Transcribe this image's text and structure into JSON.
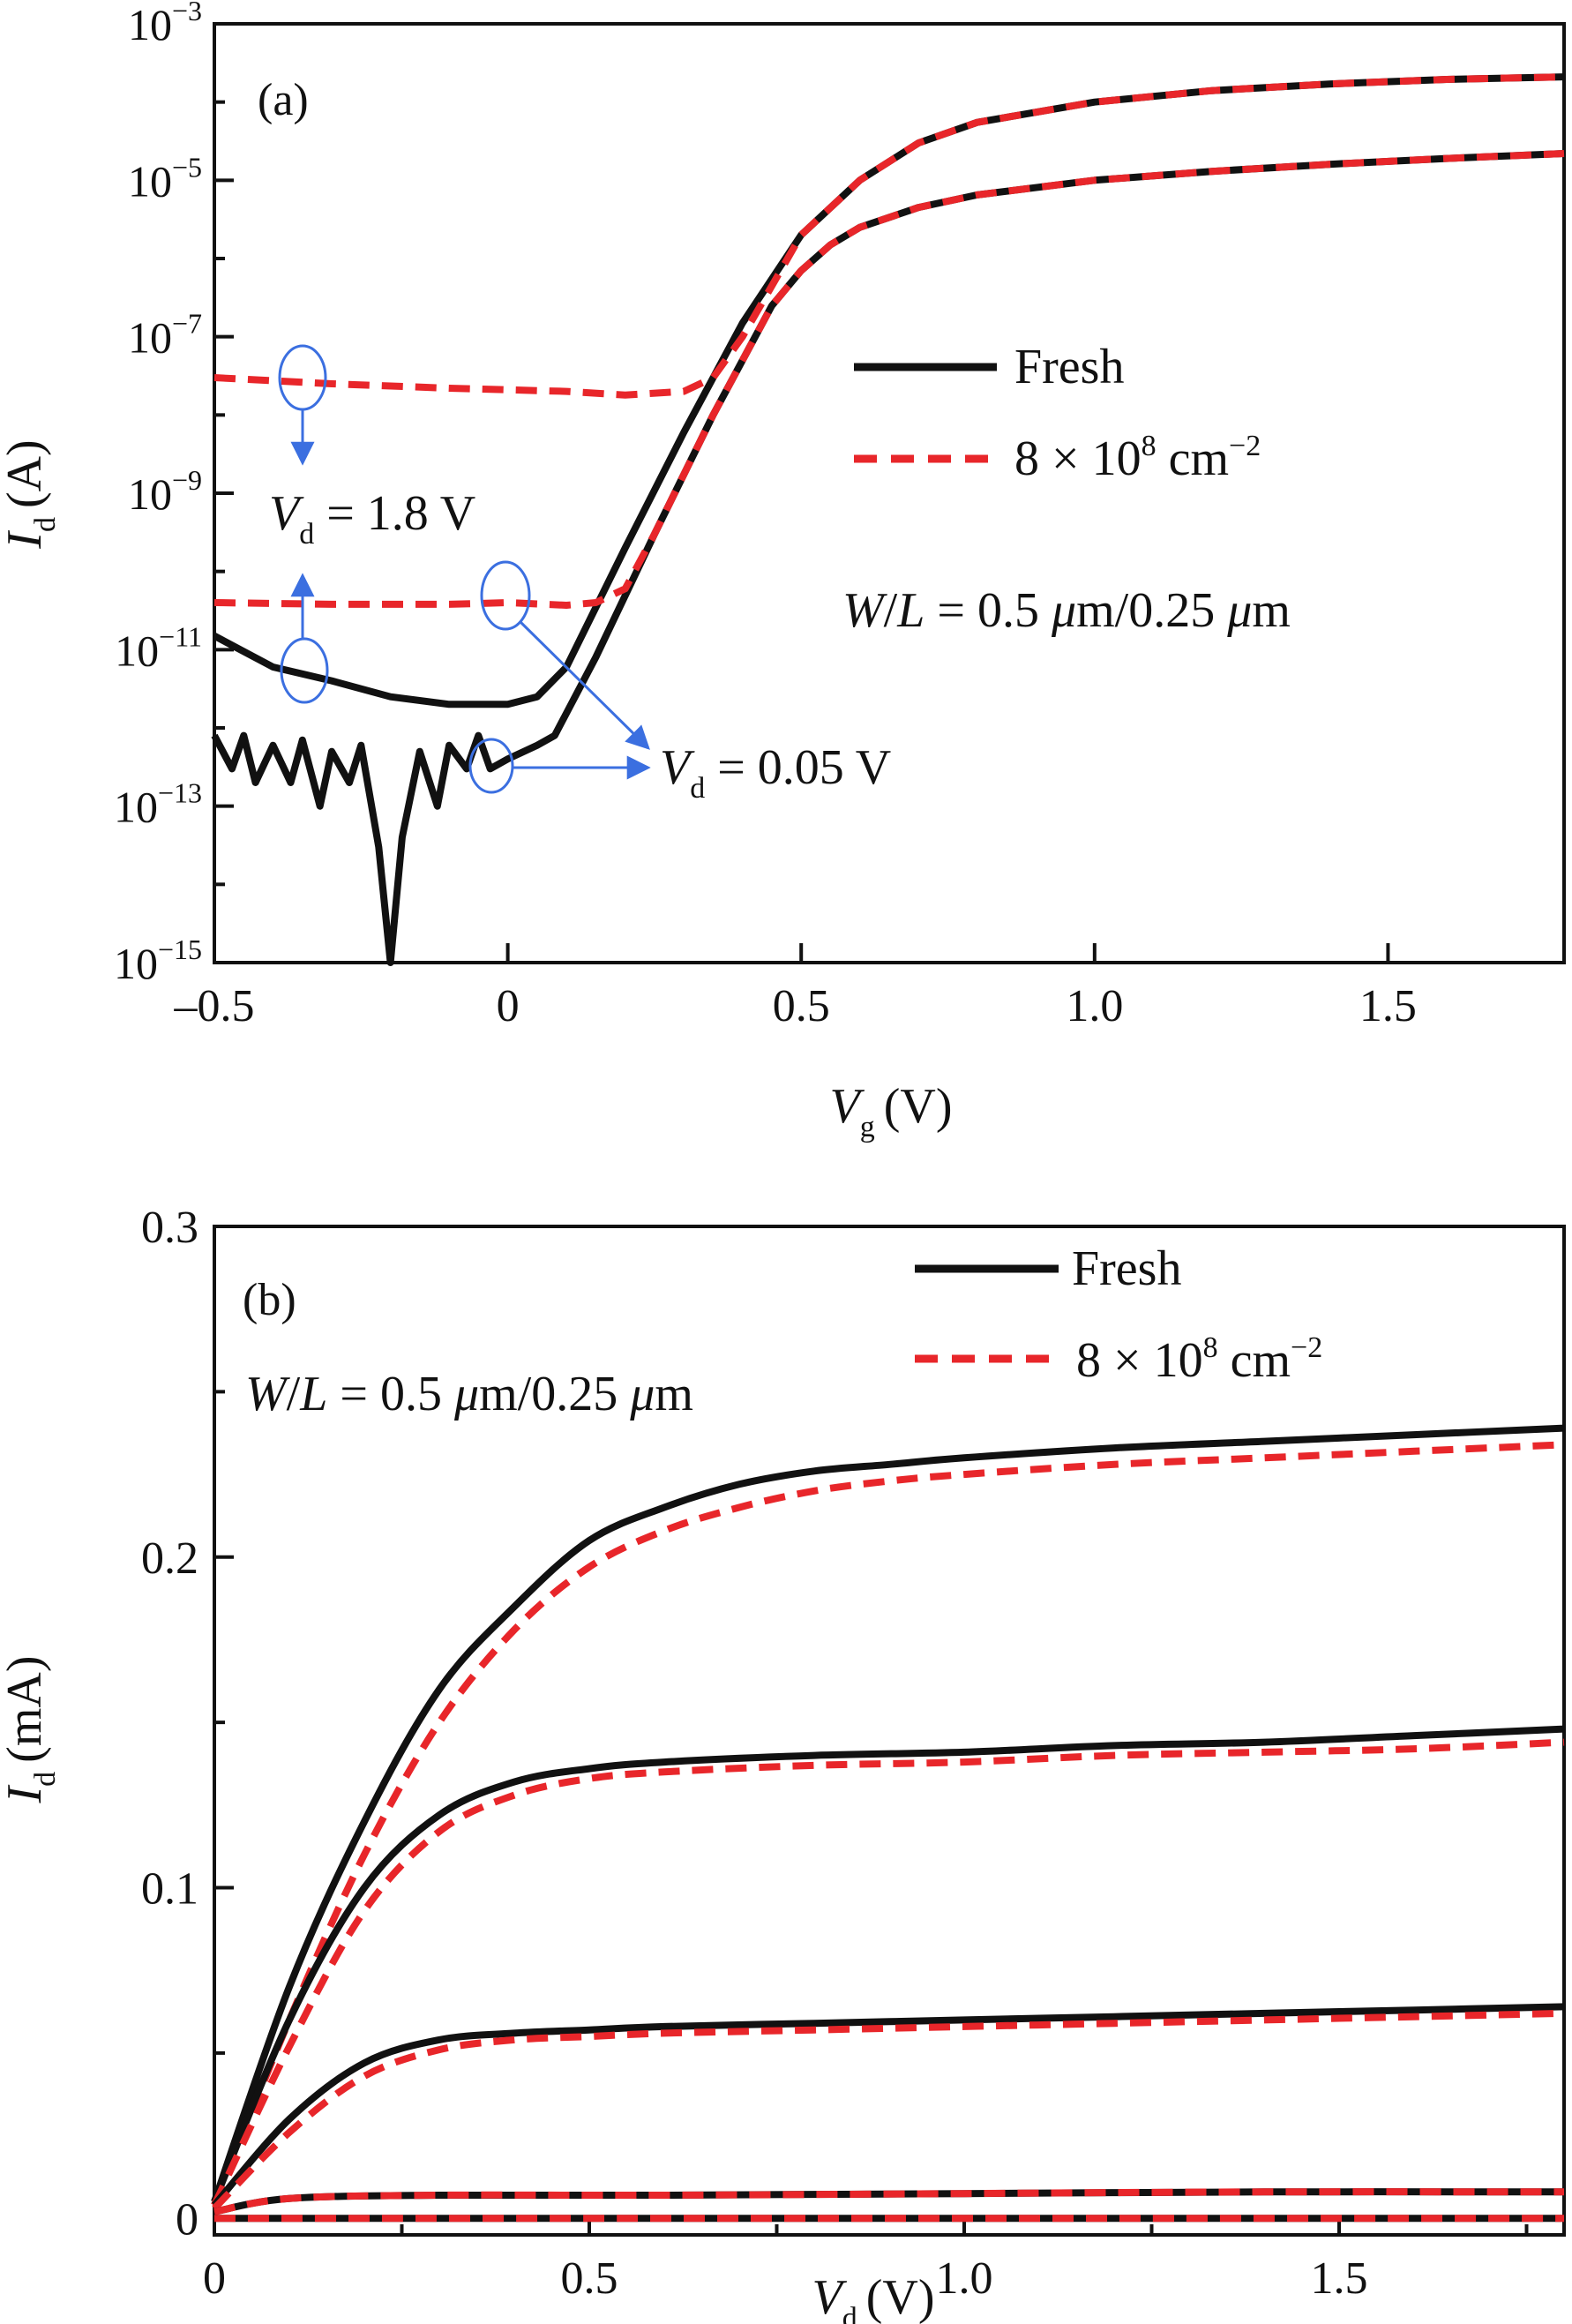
{
  "chart_data": [
    {
      "panel_label": "(a)",
      "type": "line",
      "xlabel": {
        "symbol": "V",
        "sub": "g",
        "unit": "(V)"
      },
      "ylabel": {
        "symbol": "I",
        "sub": "d",
        "unit": "(A)"
      },
      "y_scale": "log",
      "xlim": [
        -0.5,
        1.8
      ],
      "ylim": [
        1e-15,
        0.001
      ],
      "x_ticks": [
        {
          "value": -0.5,
          "label": "–0.5"
        },
        {
          "value": 0,
          "label": "0"
        },
        {
          "value": 0.5,
          "label": "0.5"
        },
        {
          "value": 1.0,
          "label": "1.0"
        },
        {
          "value": 1.5,
          "label": "1.5"
        }
      ],
      "y_ticks": [
        {
          "exp": -15,
          "base": "10",
          "sup": "−15"
        },
        {
          "exp": -13,
          "base": "10",
          "sup": "−13"
        },
        {
          "exp": -11,
          "base": "10",
          "sup": "−11"
        },
        {
          "exp": -9,
          "base": "10",
          "sup": "−9"
        },
        {
          "exp": -7,
          "base": "10",
          "sup": "−7"
        },
        {
          "exp": -5,
          "base": "10",
          "sup": "−5"
        },
        {
          "exp": -3,
          "base": "10",
          "sup": "−3"
        }
      ],
      "legend": {
        "position": "center-right",
        "entries": [
          {
            "label": "Fresh",
            "style": "solid",
            "color": "#111111"
          },
          {
            "label_main": "8 × 10",
            "label_sup": "8",
            "label_tail": " cm",
            "label_tail_sup": "−2",
            "style": "dashed",
            "color": "#e8262a"
          }
        ]
      },
      "annotations": {
        "wl_italic_w": "W",
        "wl_slash": "/",
        "wl_italic_l": "L",
        "wl_rest": " = 0.5 ",
        "wl_mu1": "μ",
        "wl_mid": "m/0.25 ",
        "wl_mu2": "μ",
        "wl_end": "m",
        "vd_high": {
          "symbol": "V",
          "sub": "d",
          "value": " = 1.8 V"
        },
        "vd_low": {
          "symbol": "V",
          "sub": "d",
          "value": " = 0.05 V"
        }
      },
      "series": [
        {
          "name": "Fresh",
          "condition": "Vd = 1.8 V",
          "style": "solid",
          "x": [
            -0.5,
            -0.4,
            -0.3,
            -0.2,
            -0.1,
            0.0,
            0.05,
            0.1,
            0.2,
            0.3,
            0.4,
            0.5,
            0.6,
            0.7,
            0.8,
            1.0,
            1.2,
            1.4,
            1.6,
            1.8
          ],
          "y": [
            1.5e-11,
            6e-12,
            4e-12,
            2.5e-12,
            2e-12,
            2e-12,
            2.5e-12,
            6e-12,
            2e-10,
            6e-09,
            1.5e-07,
            2e-06,
            1e-05,
            3e-05,
            5.5e-05,
            0.0001,
            0.00014,
            0.00017,
            0.000195,
            0.00021
          ]
        },
        {
          "name": "8 × 10^8 cm^-2",
          "condition": "Vd = 1.8 V",
          "style": "dashed",
          "x": [
            -0.5,
            -0.3,
            -0.1,
            0.1,
            0.2,
            0.3,
            0.35,
            0.4,
            0.5,
            0.6,
            0.7,
            0.8,
            1.0,
            1.2,
            1.4,
            1.6,
            1.8
          ],
          "y": [
            3e-08,
            2.5e-08,
            2.2e-08,
            2e-08,
            1.8e-08,
            2e-08,
            3e-08,
            1e-07,
            2e-06,
            1e-05,
            3e-05,
            5.5e-05,
            0.0001,
            0.00014,
            0.00017,
            0.000195,
            0.00021
          ]
        },
        {
          "name": "Fresh",
          "condition": "Vd = 0.05 V",
          "style": "solid",
          "x": [
            -0.5,
            -0.47,
            -0.45,
            -0.43,
            -0.4,
            -0.37,
            -0.35,
            -0.32,
            -0.3,
            -0.27,
            -0.25,
            -0.22,
            -0.2,
            -0.18,
            -0.15,
            -0.12,
            -0.1,
            -0.07,
            -0.05,
            -0.03,
            0.0,
            0.05,
            0.08,
            0.15,
            0.25,
            0.35,
            0.45,
            0.5,
            0.55,
            0.6,
            0.7,
            0.8,
            1.0,
            1.2,
            1.4,
            1.6,
            1.8
          ],
          "y": [
            8e-13,
            3e-13,
            8e-13,
            2e-13,
            6e-13,
            2e-13,
            7e-13,
            1e-13,
            5e-13,
            2e-13,
            6e-13,
            3e-14,
            1e-15,
            4e-14,
            5e-13,
            1e-13,
            6e-13,
            3e-13,
            8e-13,
            3e-13,
            4e-13,
            6e-13,
            8e-13,
            8e-12,
            3e-10,
            1e-08,
            2.5e-07,
            7e-07,
            1.5e-06,
            2.5e-06,
            4.5e-06,
            6.5e-06,
            1e-05,
            1.3e-05,
            1.6e-05,
            1.9e-05,
            2.2e-05
          ]
        },
        {
          "name": "8 × 10^8 cm^-2",
          "condition": "Vd = 0.05 V",
          "style": "dashed",
          "x": [
            -0.5,
            -0.3,
            -0.1,
            0.0,
            0.1,
            0.15,
            0.2,
            0.25,
            0.35,
            0.45,
            0.5,
            0.55,
            0.6,
            0.7,
            0.8,
            1.0,
            1.2,
            1.4,
            1.6,
            1.8
          ],
          "y": [
            4e-11,
            3.8e-11,
            3.8e-11,
            4e-11,
            3.7e-11,
            4e-11,
            6e-11,
            3e-10,
            1e-08,
            2.5e-07,
            7e-07,
            1.5e-06,
            2.5e-06,
            4.5e-06,
            6.5e-06,
            1e-05,
            1.3e-05,
            1.6e-05,
            1.9e-05,
            2.2e-05
          ]
        }
      ]
    },
    {
      "panel_label": "(b)",
      "type": "line",
      "xlabel": {
        "symbol": "V",
        "sub": "d",
        "unit": "(V)"
      },
      "ylabel": {
        "symbol": "I",
        "sub": "d",
        "unit": "(mA)"
      },
      "xlim": [
        0,
        1.8
      ],
      "ylim": [
        -0.005,
        0.3
      ],
      "x_ticks": [
        {
          "value": 0,
          "label": "0"
        },
        {
          "value": 0.5,
          "label": "0.5"
        },
        {
          "value": 1.0,
          "label": "1.0"
        },
        {
          "value": 1.5,
          "label": "1.5"
        }
      ],
      "y_ticks": [
        {
          "value": 0,
          "label": "0"
        },
        {
          "value": 0.1,
          "label": "0.1"
        },
        {
          "value": 0.2,
          "label": "0.2"
        },
        {
          "value": 0.3,
          "label": "0.3"
        }
      ],
      "legend": {
        "position": "top-right",
        "entries": [
          {
            "label": "Fresh",
            "style": "solid",
            "color": "#111111"
          },
          {
            "label_main": "8 × 10",
            "label_sup": "8",
            "label_tail": " cm",
            "label_tail_sup": "−2",
            "style": "dashed",
            "color": "#e8262a"
          }
        ]
      },
      "annotations": {
        "wl_italic_w": "W",
        "wl_slash": "/",
        "wl_italic_l": "L",
        "wl_rest": " = 0.5 ",
        "wl_mu1": "μ",
        "wl_mid": "m/0.25 ",
        "wl_mu2": "μ",
        "wl_end": "m"
      },
      "series": [
        {
          "name": "Fresh",
          "style": "solid",
          "x": [
            0,
            0.1,
            0.2,
            0.3,
            0.4,
            0.5,
            0.6,
            0.7,
            0.8,
            0.9,
            1.0,
            1.2,
            1.4,
            1.6,
            1.8
          ],
          "y": [
            0.005,
            0.07,
            0.12,
            0.16,
            0.185,
            0.205,
            0.215,
            0.222,
            0.226,
            0.228,
            0.23,
            0.233,
            0.235,
            0.237,
            0.239
          ]
        },
        {
          "name": "8 × 10^8 cm^-2",
          "style": "dashed",
          "x": [
            0,
            0.1,
            0.2,
            0.3,
            0.4,
            0.5,
            0.6,
            0.7,
            0.8,
            0.9,
            1.0,
            1.2,
            1.4,
            1.6,
            1.8
          ],
          "y": [
            0.004,
            0.06,
            0.11,
            0.15,
            0.178,
            0.197,
            0.208,
            0.215,
            0.22,
            0.223,
            0.225,
            0.228,
            0.23,
            0.232,
            0.234
          ]
        },
        {
          "name": "Fresh",
          "style": "solid",
          "x": [
            0,
            0.1,
            0.2,
            0.3,
            0.4,
            0.5,
            0.6,
            0.8,
            1.0,
            1.2,
            1.4,
            1.6,
            1.8
          ],
          "y": [
            0.005,
            0.06,
            0.1,
            0.122,
            0.132,
            0.136,
            0.138,
            0.14,
            0.141,
            0.143,
            0.144,
            0.146,
            0.148
          ]
        },
        {
          "name": "8 × 10^8 cm^-2",
          "style": "dashed",
          "x": [
            0,
            0.1,
            0.2,
            0.3,
            0.4,
            0.5,
            0.6,
            0.8,
            1.0,
            1.2,
            1.4,
            1.6,
            1.8
          ],
          "y": [
            0.004,
            0.052,
            0.093,
            0.117,
            0.128,
            0.133,
            0.135,
            0.137,
            0.138,
            0.14,
            0.141,
            0.142,
            0.144
          ]
        },
        {
          "name": "Fresh",
          "style": "solid",
          "x": [
            0,
            0.1,
            0.2,
            0.3,
            0.4,
            0.5,
            0.6,
            0.8,
            1.0,
            1.2,
            1.4,
            1.6,
            1.8
          ],
          "y": [
            0.004,
            0.03,
            0.047,
            0.054,
            0.056,
            0.057,
            0.058,
            0.059,
            0.06,
            0.061,
            0.062,
            0.063,
            0.064
          ]
        },
        {
          "name": "8 × 10^8 cm^-2",
          "style": "dashed",
          "x": [
            0,
            0.1,
            0.2,
            0.3,
            0.4,
            0.5,
            0.6,
            0.8,
            1.0,
            1.2,
            1.4,
            1.6,
            1.8
          ],
          "y": [
            0.003,
            0.026,
            0.043,
            0.051,
            0.054,
            0.055,
            0.056,
            0.057,
            0.058,
            0.059,
            0.06,
            0.061,
            0.062
          ]
        },
        {
          "name": "Fresh",
          "style": "solid",
          "x": [
            0,
            0.1,
            0.3,
            0.6,
            1.0,
            1.4,
            1.8
          ],
          "y": [
            0.002,
            0.006,
            0.007,
            0.007,
            0.0075,
            0.008,
            0.008
          ]
        },
        {
          "name": "8 × 10^8 cm^-2",
          "style": "dashed",
          "x": [
            0,
            0.1,
            0.3,
            0.6,
            1.0,
            1.4,
            1.8
          ],
          "y": [
            0.002,
            0.006,
            0.007,
            0.007,
            0.0075,
            0.008,
            0.008
          ]
        },
        {
          "name": "Fresh",
          "style": "solid",
          "x": [
            0,
            0.6,
            1.2,
            1.8
          ],
          "y": [
            0.0,
            0.0,
            0.0,
            0.0
          ]
        },
        {
          "name": "8 × 10^8 cm^-2",
          "style": "dashed",
          "x": [
            0,
            0.6,
            1.2,
            1.8
          ],
          "y": [
            0.0,
            0.0,
            0.0,
            0.0
          ]
        }
      ]
    }
  ]
}
